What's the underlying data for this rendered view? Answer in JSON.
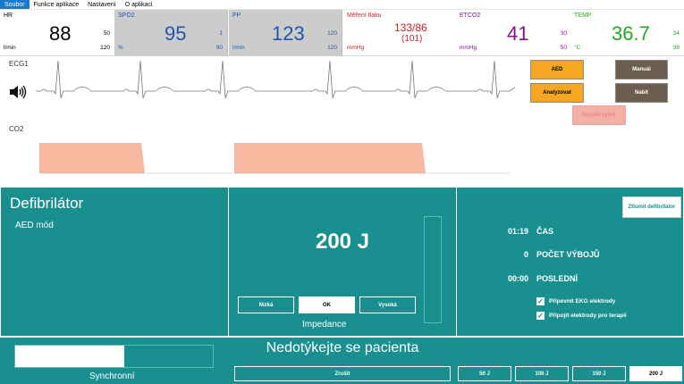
{
  "menu": {
    "items": [
      "Soubor",
      "Funkce aplikace",
      "Nastavení",
      "O aplikaci"
    ],
    "active_index": 0
  },
  "vitals": {
    "hr": {
      "label": "HR",
      "value": "88",
      "high": "50",
      "low": "120",
      "unit": "l/min"
    },
    "spo2": {
      "label": "SPO2",
      "value": "95",
      "high": "1",
      "low": "90",
      "unit": "%"
    },
    "pp": {
      "label": "PP",
      "value": "123",
      "high": "120",
      "low": "120",
      "unit": "l/min"
    },
    "bp": {
      "label": "Měření tlaku",
      "value": "133/86",
      "mean": "(101)",
      "unit": "mmHg"
    },
    "etco2": {
      "label": "ETCO2",
      "value": "41",
      "high": "30",
      "low": "50",
      "unit": "mmHg"
    },
    "temp": {
      "label": "TEMP",
      "value": "36.7",
      "high": "34",
      "low": "38",
      "unit": "°C"
    }
  },
  "waves": {
    "ecg_label": "ECG1",
    "co2_label": "CO2"
  },
  "controls": {
    "aed": "AED",
    "manual": "Manuál",
    "analyze": "Analyzovat",
    "charge": "Nabít",
    "shock": "Spustit výboj"
  },
  "defib": {
    "title": "Defibrilátor",
    "mode": "AED mód",
    "energy": "200 J",
    "impedance_buttons": [
      "Nízká",
      "OK",
      "Vysoká"
    ],
    "impedance_selected": 1,
    "impedance_label": "Impedance",
    "mute_button": "Ztlumit defibrilátor",
    "time_value": "01:19",
    "time_label": "ČAS",
    "shocks_value": "0",
    "shocks_label": "POČET VÝBOJŮ",
    "last_value": "00:00",
    "last_label": "POSLEDNÍ",
    "check1": "Připevnit EKG elektrody",
    "check2": "Připojit elektrody pro terapii"
  },
  "bottom": {
    "warning": "Nedotýkejte se pacienta",
    "sync_label": "Synchronní",
    "sync_progress": 0.55,
    "cancel": "Zrušit",
    "energy_buttons": [
      "50 J",
      "100 J",
      "150 J",
      "200 J"
    ],
    "energy_selected": 3
  },
  "colors": {
    "teal": "#1a8f8f",
    "spo2_blue": "#2255aa",
    "bp_red": "#cc2222",
    "etco2_purple": "#881188",
    "temp_green": "#22aa22",
    "co2_fill": "#f8b8a0"
  }
}
